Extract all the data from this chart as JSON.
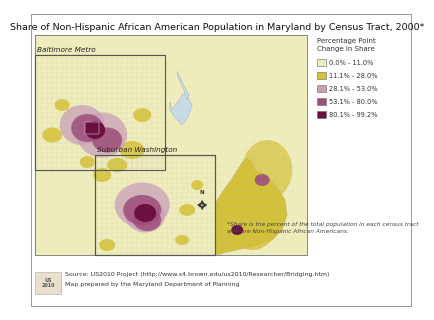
{
  "title": "Share of Non-Hispanic African American Population in Maryland by Census Tract, 2000*",
  "title_fontsize": 6.8,
  "background_color": "#f5f4f0",
  "outer_border_color": "#999999",
  "legend_title": "Percentage Point\nChange in Share",
  "legend_items": [
    {
      "label": "0.0% - 11.0%",
      "color": "#f0edbc"
    },
    {
      "label": "11.1% - 28.0%",
      "color": "#d4c13a"
    },
    {
      "label": "28.1% - 53.0%",
      "color": "#c9a0b8"
    },
    {
      "label": "53.1% - 80.0%",
      "color": "#9e4d7a"
    },
    {
      "label": "80.1% - 99.2%",
      "color": "#6b1040"
    }
  ],
  "legend_fontsize": 4.8,
  "legend_title_fontsize": 5.0,
  "inset1_label": "Baltimore Metro",
  "inset2_label": "Suburban Washington",
  "footnote": "*Share is the percent of the total population in each census tract\nwho are Non-Hispanic African Americans.",
  "source_line1": "Source: US2010 Project (http://www.s4.brown.edu/us2010/Researcher/Bridging.htm)",
  "source_line2": "Map prepared by the Maryland Department of Planning",
  "footnote_fontsize": 4.2,
  "source_fontsize": 4.5,
  "map_light": "#f0edbc",
  "map_yellow": "#d4c13a",
  "map_pink": "#c9a0b8",
  "map_purple": "#9e4d7a",
  "map_dark": "#6b1040",
  "map_water": "#c8dce8",
  "grid_color": "#aaaaaa"
}
